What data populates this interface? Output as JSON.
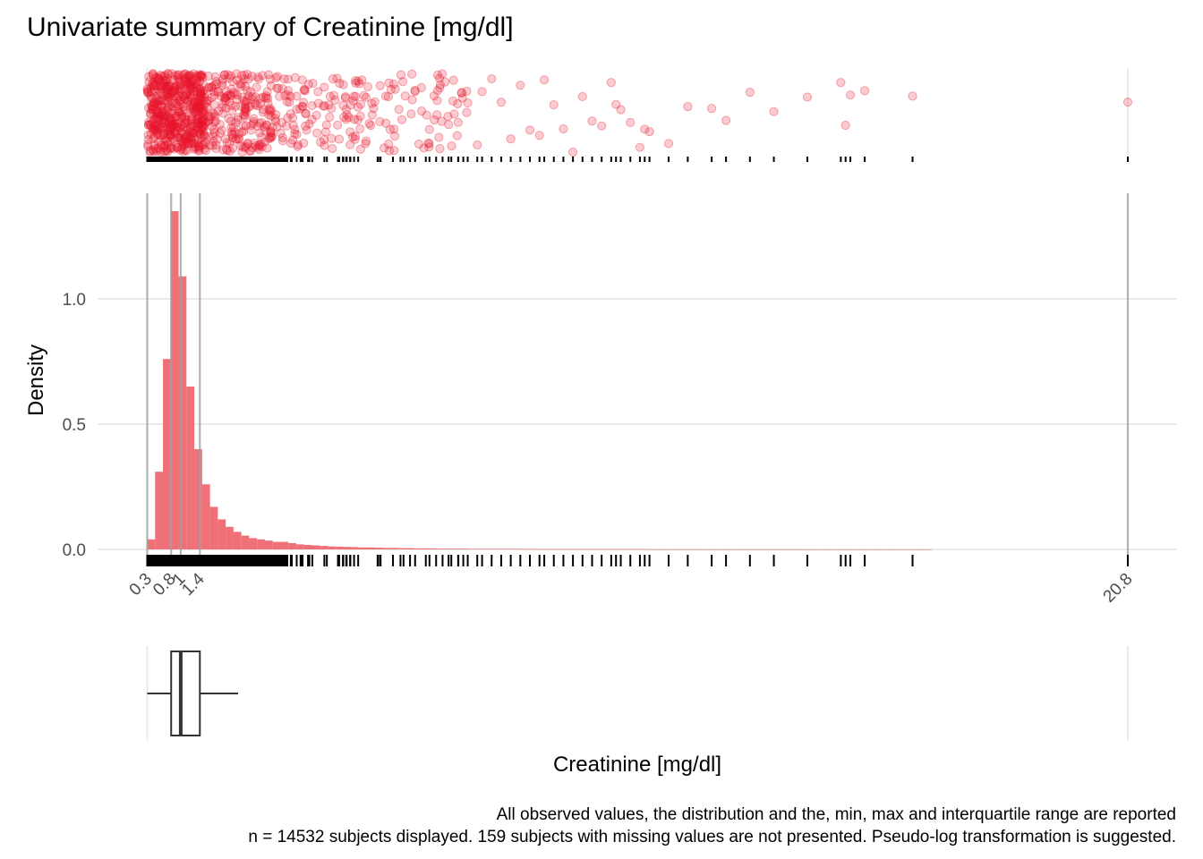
{
  "chart_data": {
    "type": "histogram",
    "title": "Univariate summary of Creatinine [mg/dl]",
    "xlabel": "Creatinine [mg/dl]",
    "ylabel": "Density",
    "caption_lines": [
      "All observed values, the distribution and the, min, max and interquartile range are reported",
      "n = 14532 subjects displayed. 159 subjects with missing values are not presented. Pseudo-log transformation is suggested."
    ],
    "xlim": [
      0.3,
      20.8
    ],
    "ylim": [
      0,
      1.35
    ],
    "x_ticks": [
      {
        "value": 0.3,
        "label": "0.3"
      },
      {
        "value": 0.8,
        "label": "0.8"
      },
      {
        "value": 1.0,
        "label": "1"
      },
      {
        "value": 1.4,
        "label": "1.4"
      },
      {
        "value": 20.8,
        "label": "20.8"
      }
    ],
    "y_ticks": [
      {
        "value": 0.0,
        "label": "0.0"
      },
      {
        "value": 0.5,
        "label": "0.5"
      },
      {
        "value": 1.0,
        "label": "1.0"
      }
    ],
    "reference_lines": [
      0.3,
      0.8,
      1.0,
      1.4,
      20.8
    ],
    "grid": true,
    "bin_width": 0.164,
    "bin_start": 0.3,
    "densities": [
      0.04,
      0.31,
      0.76,
      1.35,
      1.09,
      0.65,
      0.4,
      0.26,
      0.17,
      0.12,
      0.09,
      0.07,
      0.055,
      0.045,
      0.04,
      0.035,
      0.03,
      0.03,
      0.025,
      0.02,
      0.018,
      0.016,
      0.014,
      0.012,
      0.011,
      0.01,
      0.009,
      0.008,
      0.008,
      0.007,
      0.006,
      0.006,
      0.005,
      0.005,
      0.004,
      0.004,
      0.004,
      0.003,
      0.003,
      0.003,
      0.003,
      0.002,
      0.002,
      0.002,
      0.002,
      0.002,
      0.002,
      0.0015,
      0.0015,
      0.0015,
      0.0012,
      0.0012,
      0.0012,
      0.001,
      0.001,
      0.001,
      0.001,
      0.001,
      0.001,
      0.001,
      0.0008,
      0.0008,
      0.0008,
      0.0008,
      0.0006,
      0.0006,
      0.0006,
      0.0005,
      0.0005,
      0.0005,
      0.0004,
      0.0004,
      0.0003,
      0.0003,
      0.0003,
      0.0003,
      0.0002,
      0.0002,
      0.0002,
      0.0002,
      0.0002,
      0.0002,
      0.0002,
      0.0002,
      0.0001,
      0.0001,
      0.0001,
      0.0001,
      0.0001,
      0.0001,
      0.0001,
      0.0001,
      0.0001,
      0.0001,
      0.0001,
      0.0001,
      0.0001,
      0.0001,
      0.0001,
      0.0001
    ],
    "boxplot": {
      "min": 0.3,
      "q1": 0.8,
      "median": 1.0,
      "q3": 1.4,
      "whisker_upper": 2.2,
      "max": 20.8
    },
    "sparse_observations": [
      5.9,
      6.2,
      6.6,
      6.8,
      7.0,
      7.2,
      7.3,
      7.5,
      7.7,
      7.9,
      8.1,
      8.3,
      8.5,
      8.6,
      8.8,
      9.0,
      9.2,
      9.4,
      9.6,
      9.8,
      10.0,
      10.1,
      10.2,
      10.4,
      10.6,
      10.7,
      10.8,
      11.2,
      11.6,
      12.1,
      12.4,
      12.9,
      13.4,
      14.1,
      14.8,
      14.9,
      15.0,
      15.3,
      16.3,
      20.8
    ],
    "series_color": "#e8142a",
    "hist_color": "#f07078"
  }
}
